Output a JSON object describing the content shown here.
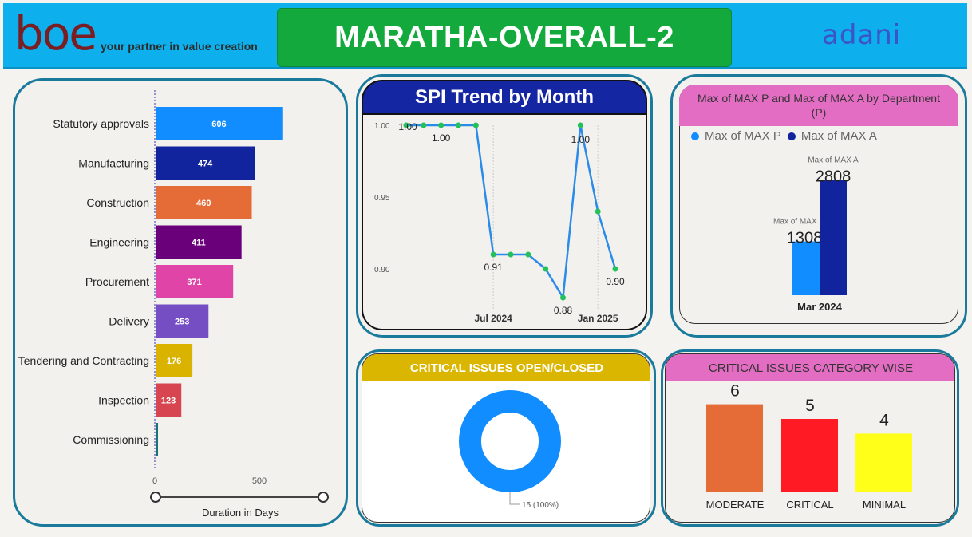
{
  "header": {
    "logo_text": "boe",
    "tagline": "your partner in value creation",
    "title": "MARATHA-OVERALL-2",
    "partner_logo": "adani",
    "colors": {
      "bar": "#0db0ec",
      "title_bg": "#14a93d"
    }
  },
  "duration_chart": {
    "chart_data": {
      "type": "bar",
      "orientation": "horizontal",
      "categories": [
        "Statutory approvals",
        "Manufacturing",
        "Construction",
        "Engineering",
        "Procurement",
        "Delivery",
        "Tendering and Contracting",
        "Inspection",
        "Commissioning"
      ],
      "values": [
        606,
        474,
        460,
        411,
        371,
        253,
        176,
        123,
        10
      ],
      "labels": [
        "606",
        "474",
        "460",
        "411",
        "371",
        "253",
        "176",
        "123",
        ""
      ],
      "colors": [
        "#118dff",
        "#12239e",
        "#e66c37",
        "#6b007b",
        "#e044a7",
        "#744ec2",
        "#d9b300",
        "#d64550",
        "#197278"
      ],
      "xlabel": "Duration in Days",
      "xticks": [
        "0",
        "500"
      ],
      "xlim": [
        0,
        1160
      ]
    }
  },
  "spi_chart": {
    "title": "SPI Trend by Month",
    "chart_data": {
      "type": "line",
      "title": "SPI Trend by Month",
      "x": [
        "2024-02",
        "2024-03",
        "2024-04",
        "2024-05",
        "2024-06",
        "2024-07",
        "2024-08",
        "2024-09",
        "2024-10",
        "2024-11",
        "2024-12",
        "2025-01",
        "2025-02"
      ],
      "values": [
        1.0,
        1.0,
        1.0,
        1.0,
        1.0,
        0.91,
        0.91,
        0.91,
        0.9,
        0.88,
        1.0,
        0.94,
        0.9
      ],
      "data_labels": [
        "1.00",
        "",
        "1.00",
        "",
        "",
        "0.91",
        "",
        "",
        "",
        "0.88",
        "1.00",
        "",
        "0.90"
      ],
      "yticks": [
        "1.00",
        "0.95",
        "0.90"
      ],
      "xticks": [
        "Jul 2024",
        "Jan 2025"
      ],
      "ylim": [
        0.875,
        1.0
      ],
      "line_color": "#2a8ce8",
      "marker_color": "#25c05a"
    }
  },
  "max_chart": {
    "title": "Max of MAX P and Max of MAX A by Department (P)",
    "chart_data": {
      "type": "bar",
      "categories": [
        "Mar 2024"
      ],
      "series": [
        {
          "name": "Max of MAX P",
          "values": [
            1308
          ],
          "color": "#118dff"
        },
        {
          "name": "Max of MAX A",
          "values": [
            2808
          ],
          "color": "#12239e"
        }
      ],
      "value_labels": [
        "1308",
        "2808"
      ],
      "ylim": [
        0,
        3300
      ]
    }
  },
  "issues_open_closed": {
    "title": "CRITICAL ISSUES OPEN/CLOSED",
    "chart_data": {
      "type": "pie",
      "variant": "donut",
      "values": [
        15
      ],
      "labels": [
        "15 (100%)"
      ],
      "colors": [
        "#118dff"
      ]
    }
  },
  "issues_category": {
    "title": "CRITICAL ISSUES CATEGORY WISE",
    "chart_data": {
      "type": "bar",
      "categories": [
        "MODERATE",
        "CRITICAL",
        "MINIMAL"
      ],
      "values": [
        6,
        5,
        4
      ],
      "labels": [
        "6",
        "5",
        "4"
      ],
      "colors": [
        "#e66c37",
        "#ff1a24",
        "#ffff1a"
      ],
      "ylim": [
        0,
        7.5
      ]
    }
  }
}
